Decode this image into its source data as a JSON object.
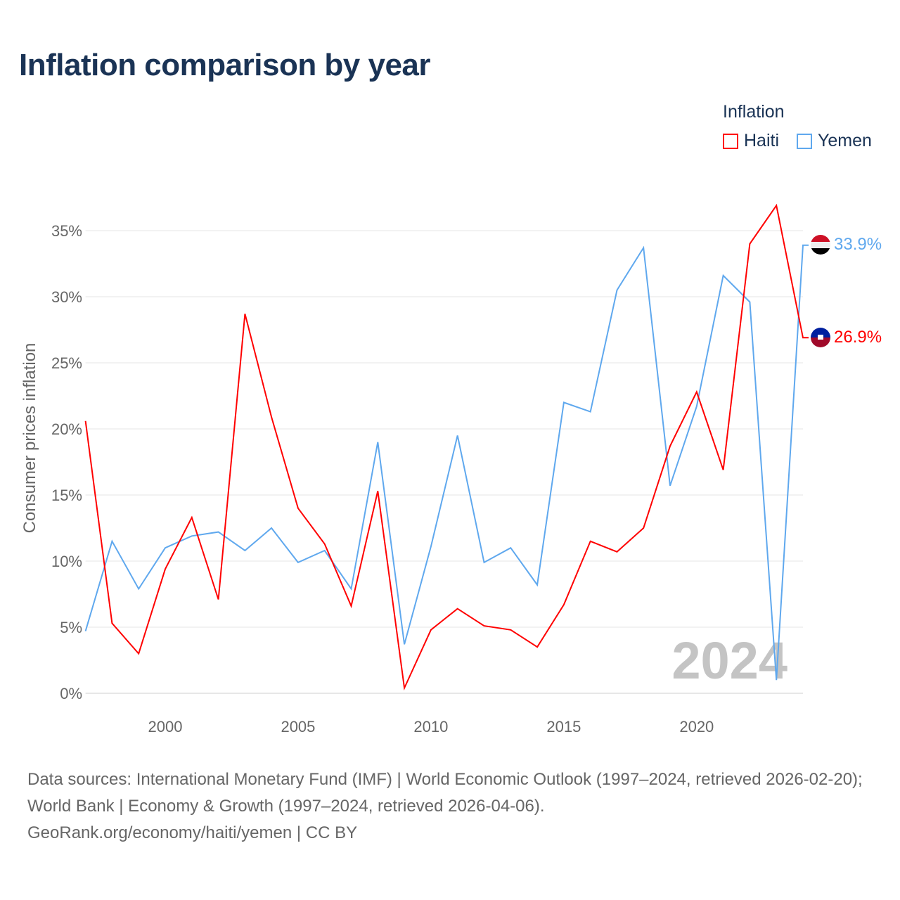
{
  "title": "Inflation comparison by year",
  "legend": {
    "title": "Inflation",
    "items": [
      {
        "name": "Haiti",
        "color": "#ff0000"
      },
      {
        "name": "Yemen",
        "color": "#5fa8ee"
      }
    ]
  },
  "watermark_year": "2024",
  "footer": {
    "sources": "Data sources: International Monetary Fund (IMF) | World Economic Outlook (1997–2024, retrieved 2026-02-20); World Bank | Economy & Growth (1997–2024, retrieved 2026-04-06).",
    "credit": "GeoRank.org/economy/haiti/yemen | CC BY"
  },
  "chart_data": {
    "type": "line",
    "title": "Inflation comparison by year",
    "xlabel": "",
    "ylabel": "Consumer prices inflation",
    "x": [
      1997,
      1998,
      1999,
      2000,
      2001,
      2002,
      2003,
      2004,
      2005,
      2006,
      2007,
      2008,
      2009,
      2010,
      2011,
      2012,
      2013,
      2014,
      2015,
      2016,
      2017,
      2018,
      2019,
      2020,
      2021,
      2022,
      2023,
      2024
    ],
    "xlim": [
      1997,
      2024
    ],
    "ylim": [
      0,
      37
    ],
    "x_ticks": [
      "2000",
      "2005",
      "2010",
      "2015",
      "2020"
    ],
    "y_ticks": [
      "0%",
      "5%",
      "10%",
      "15%",
      "20%",
      "25%",
      "30%",
      "35%"
    ],
    "grid": true,
    "legend_position": "top-right",
    "series": [
      {
        "name": "Haiti",
        "color": "#ff0000",
        "end_label": "26.9%",
        "values": [
          20.6,
          5.3,
          3.0,
          9.4,
          13.3,
          7.1,
          28.7,
          20.9,
          14.0,
          11.3,
          6.6,
          15.3,
          0.4,
          4.8,
          6.4,
          5.1,
          4.8,
          3.5,
          6.7,
          11.5,
          10.7,
          12.5,
          18.7,
          22.8,
          16.9,
          34.0,
          36.9,
          26.9
        ]
      },
      {
        "name": "Yemen",
        "color": "#5fa8ee",
        "end_label": "33.9%",
        "values": [
          4.7,
          11.5,
          7.9,
          11.0,
          11.9,
          12.2,
          10.8,
          12.5,
          9.9,
          10.8,
          7.9,
          19.0,
          3.7,
          11.1,
          19.5,
          9.9,
          11.0,
          8.2,
          22.0,
          21.3,
          30.5,
          33.7,
          15.7,
          21.7,
          31.6,
          29.6,
          1.0,
          33.9
        ]
      }
    ]
  }
}
